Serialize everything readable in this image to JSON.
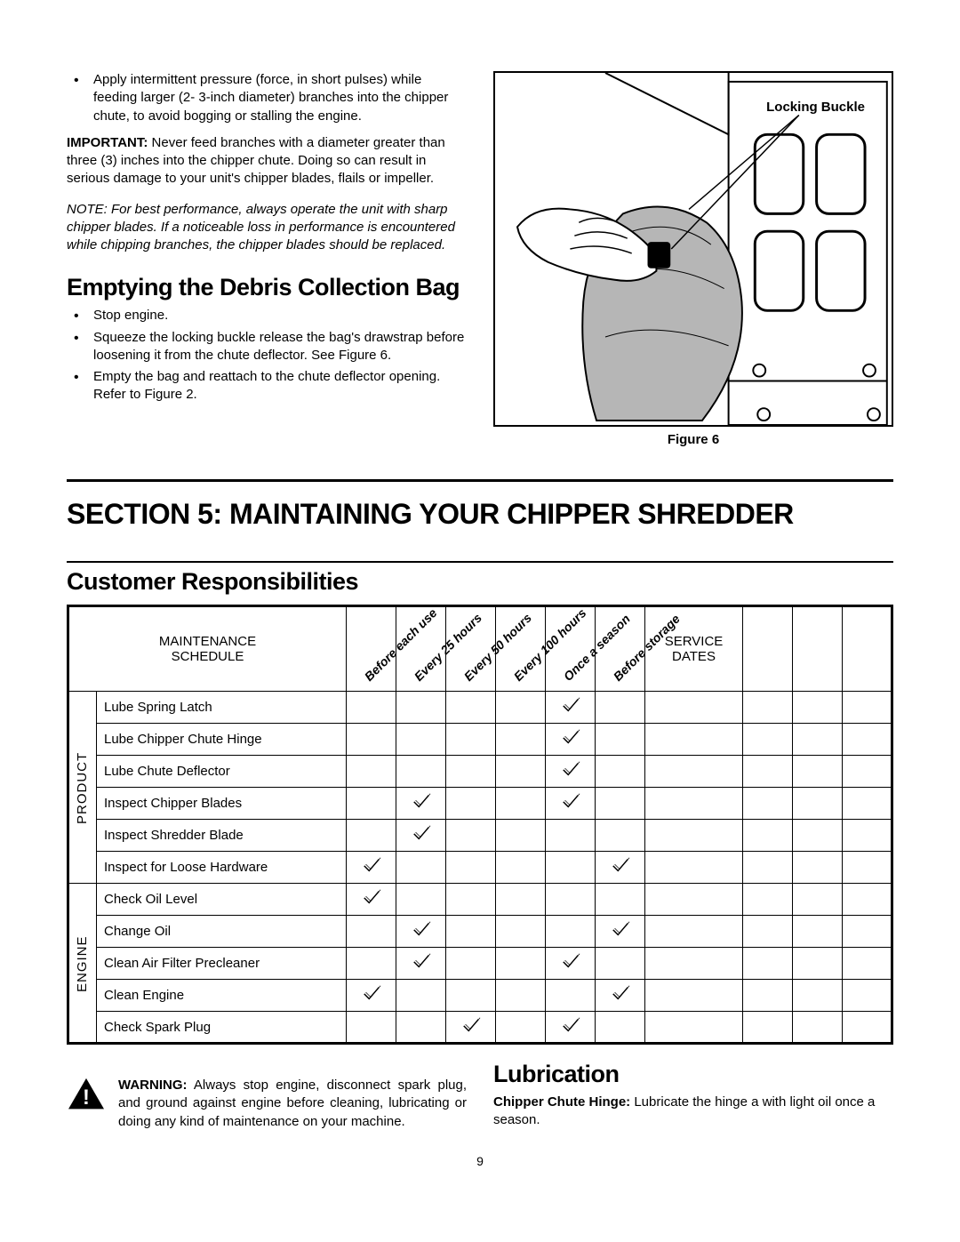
{
  "bullets_top": [
    "Apply intermittent pressure (force, in short pulses) while feeding larger (2- 3-inch diameter) branches into the chipper chute, to avoid bogging or stalling the engine."
  ],
  "important": {
    "label": "IMPORTANT:",
    "text": "  Never feed branches with a diameter greater than three (3) inches into the chipper chute. Doing so can result in serious damage to your unit's chipper blades, flails or impeller."
  },
  "note": "NOTE:  For best performance, always operate the unit with sharp chipper blades. If a noticeable loss in performance is encountered while chipping branches, the chipper blades should be replaced.",
  "h_emptying": "Emptying the Debris Collection Bag",
  "bullets_empty": [
    "Stop engine.",
    "Squeeze the locking buckle release the bag's drawstrap before loosening it from the chute deflector. See Figure 6.",
    "Empty the bag and reattach to the chute deflector opening. Refer to Figure 2."
  ],
  "figure": {
    "label": "Locking Buckle",
    "caption": "Figure 6"
  },
  "section5": "SECTION 5:  MAINTAINING YOUR CHIPPER SHREDDER",
  "cust_resp": "Customer Responsibilities",
  "table": {
    "schedule_label_1": "MAINTENANCE",
    "schedule_label_2": "SCHEDULE",
    "service_label_1": "SERVICE",
    "service_label_2": "DATES",
    "cols": [
      "Before each use",
      "Every 25 hours",
      "Every 50 hours",
      "Every 100 hours",
      "Once a season",
      "Before storage"
    ],
    "groups": [
      {
        "name": "PRODUCT",
        "rows": [
          {
            "task": "Lube Spring Latch",
            "ticks": [
              0,
              0,
              0,
              0,
              1,
              0
            ]
          },
          {
            "task": "Lube Chipper Chute Hinge",
            "ticks": [
              0,
              0,
              0,
              0,
              1,
              0
            ]
          },
          {
            "task": "Lube Chute Deflector",
            "ticks": [
              0,
              0,
              0,
              0,
              1,
              0
            ]
          },
          {
            "task": "Inspect Chipper Blades",
            "ticks": [
              0,
              1,
              0,
              0,
              1,
              0
            ]
          },
          {
            "task": "Inspect Shredder Blade",
            "ticks": [
              0,
              1,
              0,
              0,
              0,
              0
            ]
          },
          {
            "task": "Inspect for Loose Hardware",
            "ticks": [
              1,
              0,
              0,
              0,
              0,
              1
            ]
          }
        ]
      },
      {
        "name": "ENGINE",
        "rows": [
          {
            "task": "Check Oil Level",
            "ticks": [
              1,
              0,
              0,
              0,
              0,
              0
            ]
          },
          {
            "task": "Change Oil",
            "ticks": [
              0,
              1,
              0,
              0,
              0,
              1
            ]
          },
          {
            "task": "Clean Air Filter Precleaner",
            "ticks": [
              0,
              1,
              0,
              0,
              1,
              0
            ]
          },
          {
            "task": "Clean Engine",
            "ticks": [
              1,
              0,
              0,
              0,
              0,
              1
            ]
          },
          {
            "task": "Check Spark Plug",
            "ticks": [
              0,
              0,
              1,
              0,
              1,
              0
            ]
          }
        ]
      }
    ]
  },
  "warning": {
    "label": "WARNING:",
    "text": " Always stop engine, disconnect spark plug, and ground against engine before cleaning, lubricating or doing any kind of maintenance on your machine."
  },
  "lubrication": {
    "heading": "Lubrication",
    "label": "Chipper Chute Hinge:",
    "text": " Lubricate the hinge a with light oil once a season."
  },
  "page_number": "9",
  "styling": {
    "page_bg": "#ffffff",
    "text_color": "#000000",
    "body_font": "Arial",
    "heading_font": "Arial Narrow",
    "body_fontsize": 15,
    "h2_fontsize": 27,
    "section_fontsize": 32,
    "rule_weight_thick": 3,
    "rule_weight_thin": 2,
    "table_border_weight": 3,
    "table_inner_border": 1,
    "tick_stroke": "#000000",
    "figure_border": 2
  }
}
